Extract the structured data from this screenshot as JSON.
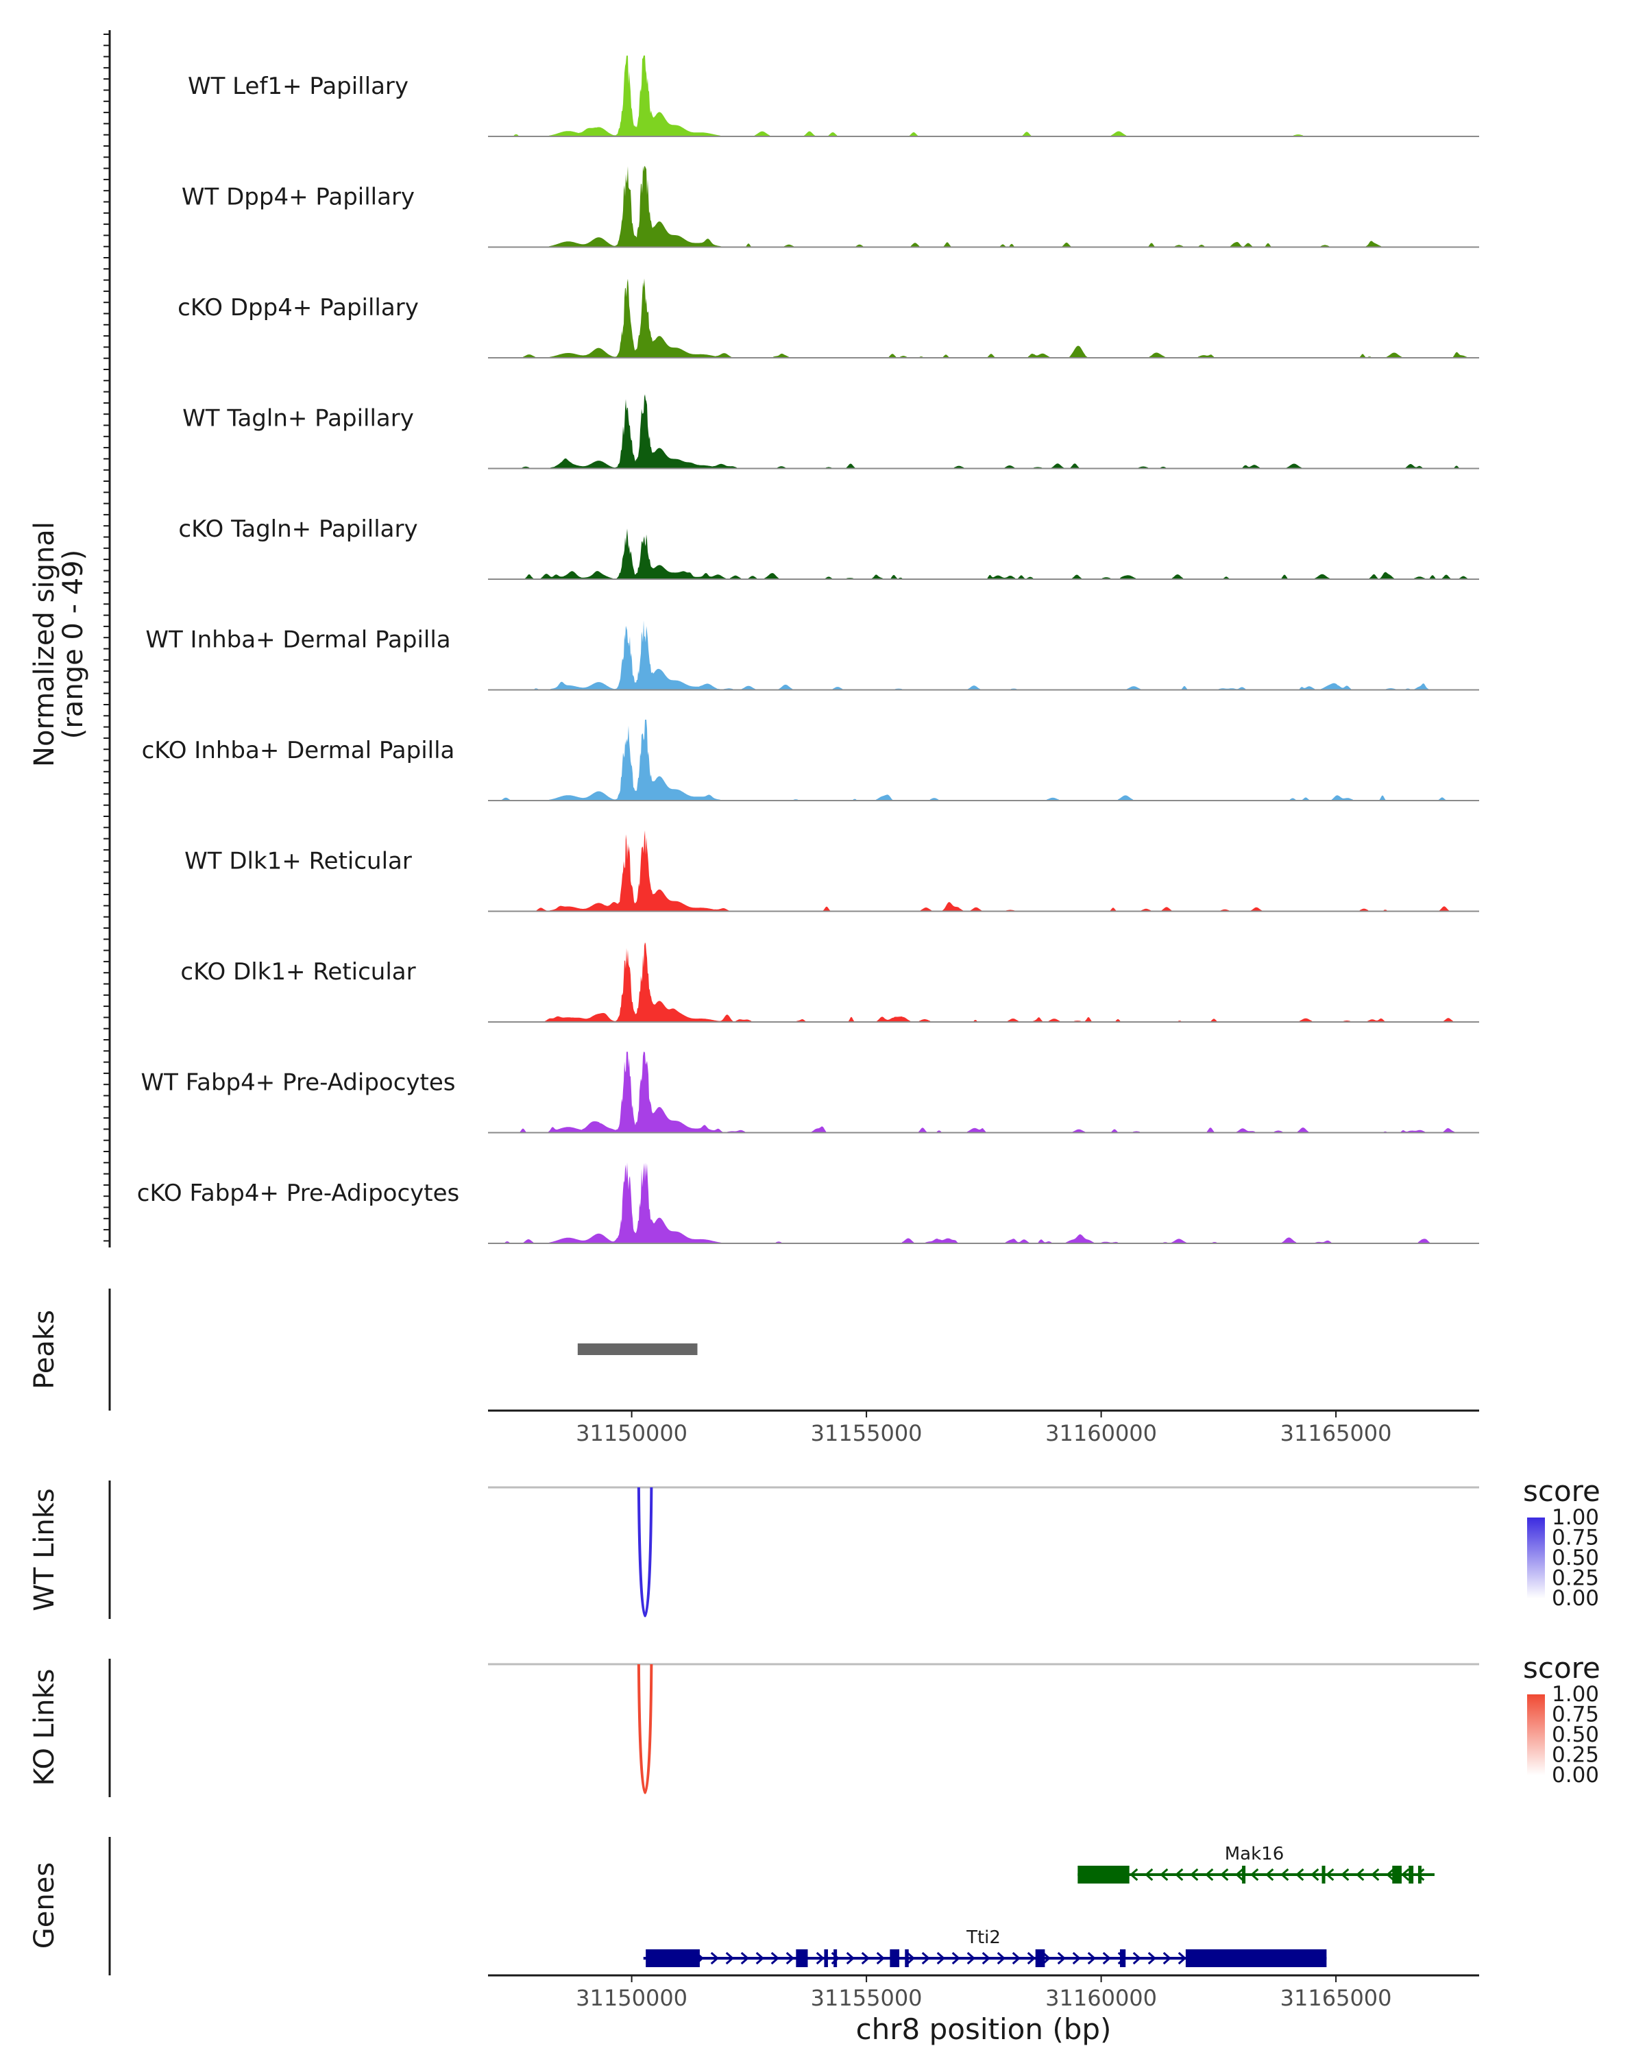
{
  "chart_data": {
    "type": "area",
    "region": {
      "chrom": "chr8",
      "start": 31146940,
      "end": 31168050
    },
    "coverage": {
      "ylabel": "Normalized signal",
      "ylabel_range": "(range 0 - 49)",
      "ylim": [
        0,
        49
      ],
      "tracks": [
        {
          "name": "WT Lef1+ Papillary",
          "color": "#7ED321",
          "scale": 0.95,
          "density": 0.15
        },
        {
          "name": "WT Dpp4+ Papillary",
          "color": "#4E8F0B",
          "scale": 1.0,
          "density": 0.35
        },
        {
          "name": "cKO Dpp4+ Papillary",
          "color": "#4E8F0B",
          "scale": 0.85,
          "density": 0.5
        },
        {
          "name": "WT Tagln+ Papillary",
          "color": "#0E5C0E",
          "scale": 0.8,
          "density": 0.4
        },
        {
          "name": "cKO Tagln+ Papillary",
          "color": "#0E5C0E",
          "scale": 0.55,
          "density": 0.75
        },
        {
          "name": "WT Inhba+ Dermal Papilla",
          "color": "#5DADE2",
          "scale": 0.8,
          "density": 0.5
        },
        {
          "name": "cKO Inhba+ Dermal Papilla",
          "color": "#5DADE2",
          "scale": 0.95,
          "density": 0.3
        },
        {
          "name": "WT Dlk1+ Reticular",
          "color": "#F5302C",
          "scale": 0.85,
          "density": 0.4
        },
        {
          "name": "cKO Dlk1+ Reticular",
          "color": "#F5302C",
          "scale": 0.82,
          "density": 0.65
        },
        {
          "name": "WT Fabp4+ Pre-Adipocytes",
          "color": "#A83FE6",
          "scale": 1.0,
          "density": 0.55
        },
        {
          "name": "cKO Fabp4+ Pre-Adipocytes",
          "color": "#A83FE6",
          "scale": 1.0,
          "density": 0.6
        }
      ]
    },
    "peaks": {
      "label": "Peaks",
      "color": "#666666",
      "intervals": [
        [
          31148850,
          31151400
        ]
      ]
    },
    "x_axis": {
      "ticks": [
        31150000,
        31155000,
        31160000,
        31165000
      ],
      "xlabel": "chr8 position (bp)"
    },
    "links": [
      {
        "label": "WT Links",
        "color": "#3B2BE0",
        "from": 31150150,
        "to": 31150420,
        "score": 1.0,
        "legend": {
          "title": "score",
          "ticks": [
            "1.00",
            "0.75",
            "0.50",
            "0.25",
            "0.00"
          ],
          "color": "#3B2BE0"
        }
      },
      {
        "label": "KO Links",
        "color": "#F04A33",
        "from": 31150150,
        "to": 31150420,
        "score": 0.8,
        "legend": {
          "title": "score",
          "ticks": [
            "1.00",
            "0.75",
            "0.50",
            "0.25",
            "0.00"
          ],
          "color": "#F04A33"
        }
      }
    ],
    "genes": {
      "label": "Genes",
      "items": [
        {
          "name": "Mak16",
          "strand": "-",
          "color": "#006400",
          "start": 31159500,
          "end": 31167100,
          "exons": [
            [
              31159500,
              31160600
            ],
            [
              31164700,
              31164750
            ],
            [
              31163000,
              31163060
            ],
            [
              31166200,
              31166400
            ],
            [
              31166550,
              31166650
            ],
            [
              31166750,
              31166820
            ]
          ]
        },
        {
          "name": "Tti2",
          "strand": "+",
          "color": "#00008B",
          "start": 31150250,
          "end": 31164800,
          "exons": [
            [
              31150300,
              31151450
            ],
            [
              31153500,
              31153750
            ],
            [
              31154100,
              31154180
            ],
            [
              31154300,
              31154350
            ],
            [
              31155500,
              31155700
            ],
            [
              31155820,
              31155900
            ],
            [
              31158600,
              31158800
            ],
            [
              31160400,
              31160520
            ],
            [
              31161800,
              31164800
            ]
          ]
        }
      ]
    }
  }
}
